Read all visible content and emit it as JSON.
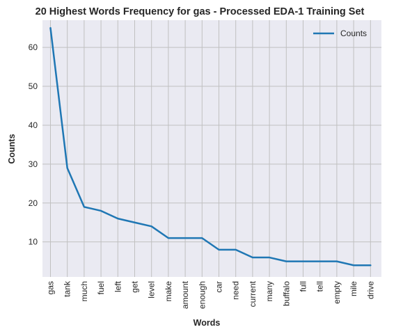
{
  "chart_data": {
    "type": "line",
    "title": "20 Highest Words Frequency for gas - Processed EDA-1 Training Set",
    "xlabel": "Words",
    "ylabel": "Counts",
    "categories": [
      "gas",
      "tank",
      "much",
      "fuel",
      "left",
      "get",
      "level",
      "make",
      "amount",
      "enough",
      "car",
      "need",
      "current",
      "many",
      "buffalo",
      "full",
      "tell",
      "empty",
      "mile",
      "drive"
    ],
    "series": [
      {
        "name": "Counts",
        "values": [
          65,
          29,
          19,
          18,
          16,
          15,
          14,
          11,
          11,
          11,
          8,
          8,
          6,
          6,
          5,
          5,
          5,
          5,
          4,
          4
        ],
        "color": "#1f77b4"
      }
    ],
    "yticks": [
      10,
      20,
      30,
      40,
      50,
      60
    ],
    "ylim": [
      1,
      67
    ],
    "grid": true,
    "legend": "top-right"
  },
  "colors": {
    "plot_bg": "#eaeaf2",
    "grid": "#c0c0c0",
    "text": "#262626"
  }
}
